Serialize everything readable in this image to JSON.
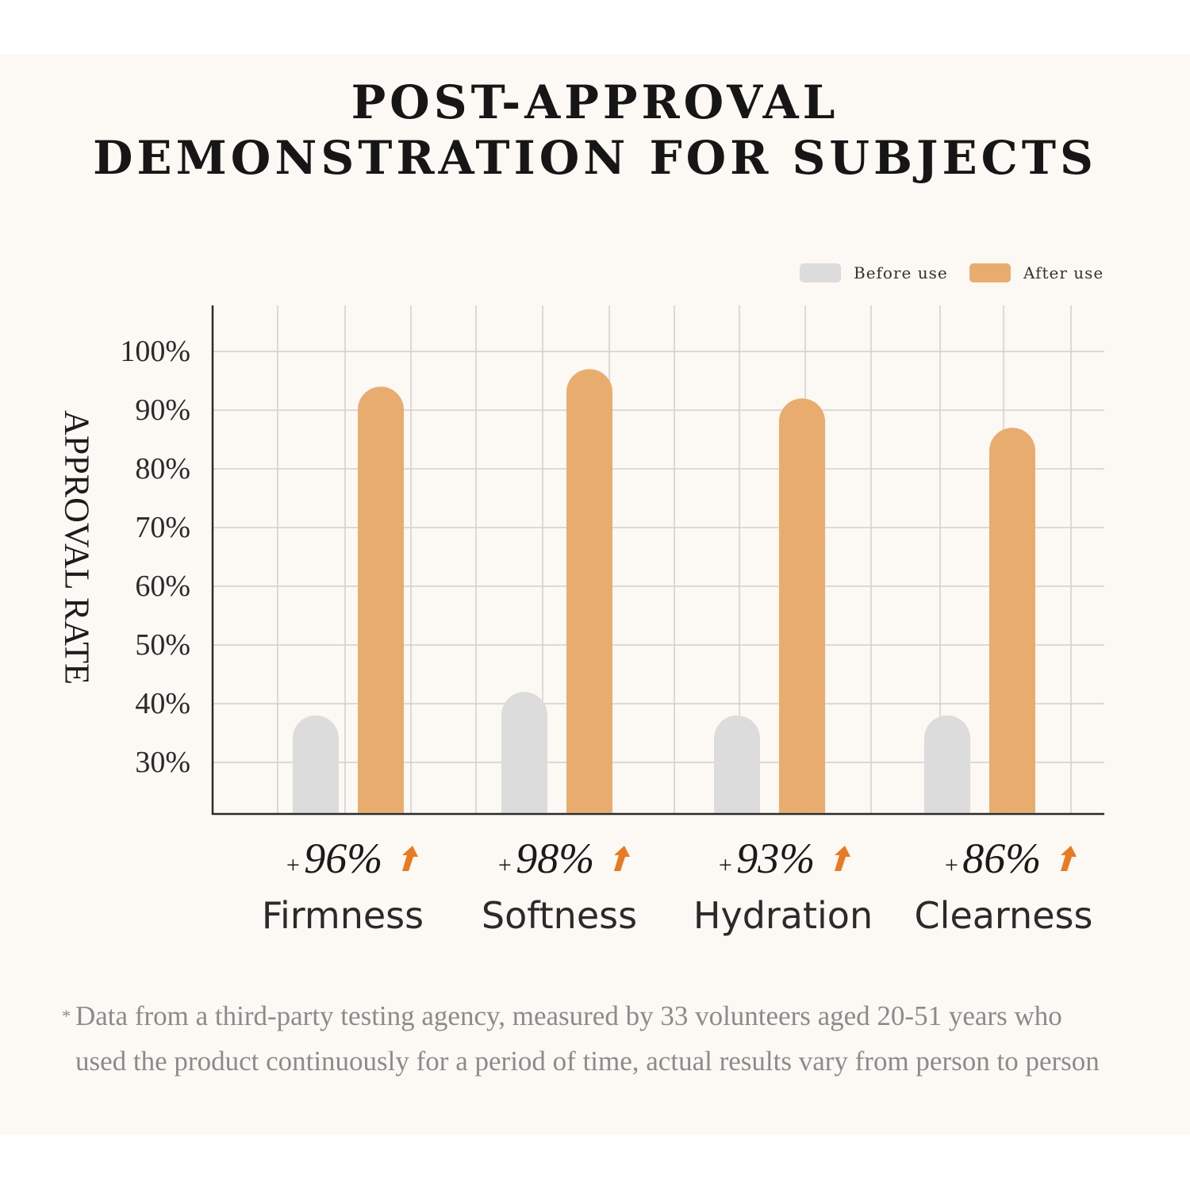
{
  "title": {
    "line1": "POST-APPROVAL",
    "line2": "DEMONSTRATION FOR SUBJECTS"
  },
  "legend": {
    "before_label": "Before use",
    "after_label": "After use"
  },
  "colors": {
    "before": "#dcdcdc",
    "after": "#e8ad6e",
    "arrow": "#e87a22",
    "grid": "#cfcfcf",
    "axis": "#2a2a2a",
    "panel": "#fcf8f3"
  },
  "footnote": {
    "star": "*",
    "text": "Data from a third-party testing agency, measured by 33 volunteers aged 20-51 years who used the product continuously for a period of time, actual results vary from person to person"
  },
  "chart_data": {
    "type": "bar",
    "categories": [
      "Firmness",
      "Softness",
      "Hydration",
      "Clearness"
    ],
    "increase_labels": [
      "96%",
      "98%",
      "93%",
      "86%"
    ],
    "increase_prefix": "+",
    "series": [
      {
        "name": "Before use",
        "values": [
          38,
          42,
          38,
          38
        ]
      },
      {
        "name": "After use",
        "values": [
          94,
          97,
          92,
          87
        ]
      }
    ],
    "ylabel": "APPROVAL RATE",
    "yticks": [
      30,
      40,
      50,
      60,
      70,
      80,
      90,
      100
    ],
    "ytick_labels": [
      "30%",
      "40%",
      "50%",
      "60%",
      "70%",
      "80%",
      "90%",
      "100%"
    ],
    "ylim": [
      22,
      108
    ],
    "grid": true,
    "legend_position": "top-right"
  }
}
